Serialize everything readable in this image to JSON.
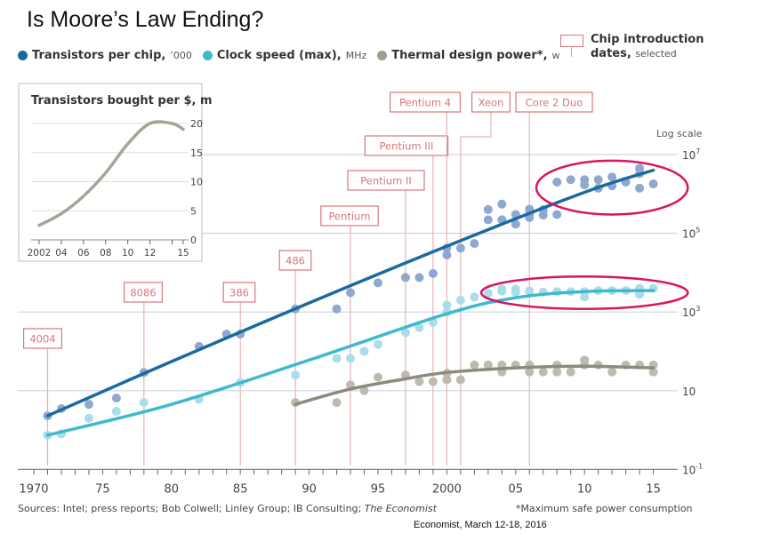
{
  "slide_title": "Is Moore’s Law Ending?",
  "legend": [
    {
      "label": "Transistors per chip,",
      "unit": "’000",
      "color": "#1a6aa0"
    },
    {
      "label": "Clock speed (max),",
      "unit": "MHz",
      "color": "#3fb8d0"
    },
    {
      "label": "Thermal design power*,",
      "unit": "w",
      "color": "#a09e92"
    }
  ],
  "chip_legend": {
    "title": "Chip introduction",
    "line2_bold": "dates,",
    "line2_normal": "selected"
  },
  "sources": "Sources: Intel; press reports; Bob Colwell; Linley Group; IB Consulting;",
  "sources_italic": "The Economist",
  "footnote": "*Maximum safe power consumption",
  "citation": "Economist, March 12-18, 2016",
  "colors": {
    "transistors_dot": "#8fa8cf",
    "transistors_line": "#1a6aa0",
    "clock_dot": "#a9dde9",
    "clock_line": "#3fb8d0",
    "tdp_dot": "#bdbbb0",
    "tdp_line": "#8d8b7e",
    "chip_marker": "#d9777a",
    "highlight_ellipse": "#d9165f",
    "grid": "#c9d6e0"
  },
  "chart_data": [
    {
      "type": "scatter",
      "title": "Transistors per chip, clock speed and thermal design power",
      "xlabel": "",
      "ylabel": "Log scale",
      "scale": "log",
      "xlim": [
        1969.3,
        2016
      ],
      "ylim": [
        0.1,
        10000000
      ],
      "x_ticks": [
        1970,
        1975,
        1980,
        1985,
        1990,
        1995,
        2000,
        2005,
        2010,
        2015
      ],
      "x_tick_labels": [
        "1970",
        "75",
        "80",
        "85",
        "90",
        "95",
        "2000",
        "05",
        "10",
        "15"
      ],
      "y_ticks": [
        {
          "value": 10000000,
          "label": "10",
          "exp": "7"
        },
        {
          "value": 100000,
          "label": "10",
          "exp": "5"
        },
        {
          "value": 1000,
          "label": "10",
          "exp": "3"
        },
        {
          "value": 10,
          "label": "10",
          "exp": ""
        },
        {
          "value": 0.1,
          "label": "10",
          "exp": "-1"
        }
      ],
      "grid": true,
      "legend_position": "top",
      "series": [
        {
          "name": "Transistors per chip, ’000",
          "key": "transistors",
          "points": [
            [
              1971,
              2.3
            ],
            [
              1972,
              3.5
            ],
            [
              1974,
              4.5
            ],
            [
              1976,
              6.5
            ],
            [
              1978,
              29
            ],
            [
              1982,
              134
            ],
            [
              1984,
              275
            ],
            [
              1985,
              275
            ],
            [
              1989,
              1200
            ],
            [
              1992,
              1200
            ],
            [
              1993,
              3100
            ],
            [
              1995,
              5500
            ],
            [
              1997,
              7500
            ],
            [
              1998,
              7500
            ],
            [
              1999,
              9500
            ],
            [
              2000,
              28000
            ],
            [
              2000,
              42000
            ],
            [
              2001,
              42000
            ],
            [
              2002,
              55000
            ],
            [
              2003,
              220000
            ],
            [
              2003,
              400000
            ],
            [
              2004,
              550000
            ],
            [
              2004,
              220000
            ],
            [
              2005,
              300000
            ],
            [
              2005,
              170000
            ],
            [
              2006,
              410000
            ],
            [
              2006,
              290000
            ],
            [
              2006,
              250000
            ],
            [
              2007,
              290000
            ],
            [
              2007,
              400000
            ],
            [
              2008,
              300000
            ],
            [
              2008,
              2000000
            ],
            [
              2009,
              2300000
            ],
            [
              2010,
              2300000
            ],
            [
              2010,
              1700000
            ],
            [
              2011,
              2300000
            ],
            [
              2011,
              1400000
            ],
            [
              2012,
              2700000
            ],
            [
              2012,
              1600000
            ],
            [
              2013,
              2000000
            ],
            [
              2014,
              3300000
            ],
            [
              2014,
              4500000
            ],
            [
              2014,
              1400000
            ],
            [
              2015,
              1800000
            ]
          ],
          "trend": [
            [
              1971,
              2.3
            ],
            [
              1980,
              55
            ],
            [
              1990,
              1700
            ],
            [
              2000,
              47000
            ],
            [
              2010,
              1100000
            ],
            [
              2015,
              4000000
            ]
          ]
        },
        {
          "name": "Clock speed (max), MHz",
          "key": "clock",
          "points": [
            [
              1971,
              0.74
            ],
            [
              1972,
              0.8
            ],
            [
              1974,
              2
            ],
            [
              1976,
              3
            ],
            [
              1978,
              5
            ],
            [
              1982,
              6
            ],
            [
              1985,
              16
            ],
            [
              1989,
              25
            ],
            [
              1992,
              66
            ],
            [
              1993,
              66
            ],
            [
              1994,
              100
            ],
            [
              1995,
              150
            ],
            [
              1997,
              300
            ],
            [
              1998,
              400
            ],
            [
              1999,
              550
            ],
            [
              2000,
              1500
            ],
            [
              2000,
              1000
            ],
            [
              2001,
              2000
            ],
            [
              2002,
              2400
            ],
            [
              2003,
              3000
            ],
            [
              2004,
              3400
            ],
            [
              2004,
              3800
            ],
            [
              2005,
              3800
            ],
            [
              2005,
              3200
            ],
            [
              2006,
              3400
            ],
            [
              2007,
              3200
            ],
            [
              2008,
              3300
            ],
            [
              2009,
              3300
            ],
            [
              2010,
              3300
            ],
            [
              2010,
              2400
            ],
            [
              2011,
              3500
            ],
            [
              2012,
              3500
            ],
            [
              2013,
              3500
            ],
            [
              2014,
              4000
            ],
            [
              2014,
              2800
            ],
            [
              2015,
              4000
            ]
          ],
          "trend": [
            [
              1971,
              0.74
            ],
            [
              1980,
              4.5
            ],
            [
              1990,
              60
            ],
            [
              2000,
              900
            ],
            [
              2005,
              2300
            ],
            [
              2010,
              3300
            ],
            [
              2015,
              3500
            ]
          ]
        },
        {
          "name": "Thermal design power*, w",
          "key": "tdp",
          "points": [
            [
              1989,
              5
            ],
            [
              1992,
              5
            ],
            [
              1993,
              14
            ],
            [
              1994,
              10
            ],
            [
              1995,
              22
            ],
            [
              1997,
              25
            ],
            [
              1998,
              17
            ],
            [
              1999,
              17
            ],
            [
              2000,
              28
            ],
            [
              2000,
              19
            ],
            [
              2001,
              19
            ],
            [
              2002,
              45
            ],
            [
              2003,
              45
            ],
            [
              2004,
              45
            ],
            [
              2004,
              30
            ],
            [
              2005,
              45
            ],
            [
              2006,
              45
            ],
            [
              2006,
              30
            ],
            [
              2007,
              30
            ],
            [
              2008,
              45
            ],
            [
              2008,
              30
            ],
            [
              2009,
              30
            ],
            [
              2010,
              60
            ],
            [
              2010,
              45
            ],
            [
              2011,
              45
            ],
            [
              2012,
              30
            ],
            [
              2013,
              45
            ],
            [
              2014,
              45
            ],
            [
              2015,
              45
            ],
            [
              2015,
              30
            ]
          ],
          "trend": [
            [
              1989,
              4.5
            ],
            [
              1993,
              11
            ],
            [
              1997,
              20
            ],
            [
              2000,
              29
            ],
            [
              2005,
              38
            ],
            [
              2010,
              42
            ],
            [
              2015,
              38
            ]
          ]
        }
      ],
      "chip_markers": [
        {
          "label": "4004",
          "year": 1971
        },
        {
          "label": "8086",
          "year": 1978
        },
        {
          "label": "386",
          "year": 1985
        },
        {
          "label": "486",
          "year": 1989
        },
        {
          "label": "Pentium",
          "year": 1993
        },
        {
          "label": "Pentium II",
          "year": 1997
        },
        {
          "label": "Pentium III",
          "year": 1999
        },
        {
          "label": "Pentium 4",
          "year": 2000
        },
        {
          "label": "Xeon",
          "year": 2001
        },
        {
          "label": "Core 2 Duo",
          "year": 2006
        }
      ],
      "annotations": [
        {
          "text": "highlight ellipse around transistor counts",
          "x_range": [
            2006.5,
            2017.5
          ],
          "y_range": [
            300000,
            7000000
          ]
        },
        {
          "text": "highlight ellipse around clock speeds",
          "x_range": [
            2002.5,
            2017.5
          ],
          "y_range": [
            1200,
            8000
          ]
        }
      ]
    },
    {
      "type": "line",
      "title": "Transistors bought per $, m",
      "xlabel": "",
      "ylabel": "",
      "x": [
        2002,
        2004,
        2006,
        2008,
        2010,
        2012,
        2014,
        2015
      ],
      "values": [
        2.5,
        4.5,
        7.5,
        11.5,
        16.5,
        20,
        20,
        19
      ],
      "xlim": [
        2002,
        2015
      ],
      "ylim": [
        0,
        20
      ],
      "x_ticks": [
        2002,
        2004,
        2006,
        2008,
        2010,
        2012,
        2014,
        2015
      ],
      "x_tick_labels": [
        "2002",
        "04",
        "06",
        "08",
        "10",
        "12",
        "",
        "15"
      ],
      "y_ticks": [
        0,
        5,
        10,
        15,
        20
      ],
      "grid": true
    }
  ]
}
